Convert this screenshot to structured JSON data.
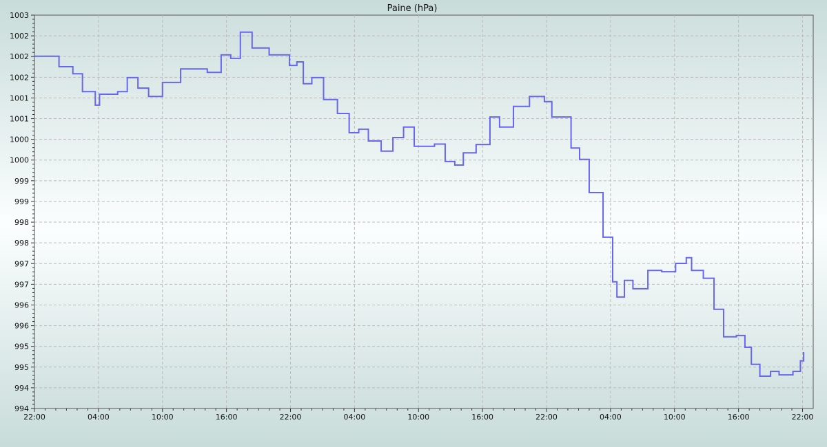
{
  "chart_data": {
    "type": "line",
    "title": "Paine (hPa)",
    "xlabel": "",
    "ylabel": "",
    "ylim": [
      994,
      1003
    ],
    "xlim_hours": [
      0,
      73
    ],
    "grid": true,
    "line_color": "#6666ee",
    "y_tick_labels": [
      "1003",
      "1002",
      "1002",
      "1002",
      "1001",
      "1001",
      "1000",
      "1000",
      "999",
      "999",
      "998",
      "998",
      "997",
      "997",
      "996",
      "996",
      "995",
      "995",
      "994",
      "994"
    ],
    "x_tick_labels": [
      "22:00",
      "04:00",
      "10:00",
      "16:00",
      "22:00",
      "04:00",
      "10:00",
      "16:00",
      "22:00",
      "04:00",
      "10:00",
      "16:00",
      "22:00"
    ],
    "series": [
      {
        "x_hours": [
          0,
          2.3,
          3.6,
          4.5,
          5.7,
          6.1,
          7.8,
          8.7,
          9.7,
          10.7,
          12,
          13.7,
          16.2,
          17.5,
          18.4,
          19.3,
          20.4,
          22,
          23.9,
          24.6,
          25.2,
          26,
          27.1,
          28.4,
          29.5,
          30.4,
          31.3,
          32.5,
          33.6,
          34.6,
          35.6,
          37.5,
          38.5,
          39.4,
          40.2,
          41.4,
          42.7,
          43.6,
          44.9,
          46.4,
          47.8,
          48.5,
          49.4,
          50.3,
          51.1,
          52,
          53.3,
          54.2,
          54.6,
          55.3,
          56.1,
          57.5,
          58.8,
          60.1,
          61.1,
          61.6,
          62.7,
          63.7,
          64.6,
          65.8,
          66.6,
          67.2,
          68,
          69,
          69.8,
          71.1,
          71.8,
          72.1
        ],
        "values": [
          1002.06,
          1001.82,
          1001.66,
          1001.25,
          1000.94,
          1001.19,
          1001.25,
          1001.57,
          1001.33,
          1001.14,
          1001.46,
          1001.77,
          1001.69,
          1002.09,
          1002.01,
          1002.61,
          1002.25,
          1002.09,
          1001.85,
          1001.93,
          1001.43,
          1001.57,
          1001.07,
          1000.75,
          1000.31,
          1000.39,
          1000.12,
          999.89,
          1000.2,
          1000.44,
          1000.0,
          1000.05,
          999.65,
          999.57,
          999.85,
          1000.04,
          1000.67,
          1000.44,
          1000.91,
          1001.14,
          1001.02,
          1000.67,
          1000.67,
          999.96,
          999.7,
          998.94,
          997.92,
          996.9,
          996.55,
          996.93,
          996.74,
          997.16,
          997.13,
          997.32,
          997.45,
          997.16,
          996.98,
          996.27,
          995.64,
          995.67,
          995.4,
          995.01,
          994.74,
          994.85,
          994.77,
          994.85,
          995.09,
          995.29
        ]
      }
    ]
  }
}
